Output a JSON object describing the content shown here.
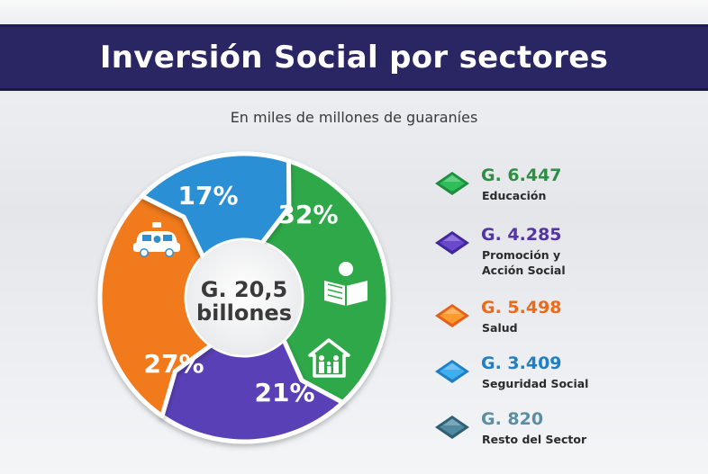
{
  "title": "Inversión Social por sectores",
  "subtitle": "En miles de millones de guaraníes",
  "center_line1": "G. 20,5",
  "center_line2": "billones",
  "chart_data": {
    "type": "pie",
    "title": "Inversión Social por sectores",
    "subtitle": "En miles de millones de guaraníes",
    "total_label": "G. 20,5 billones",
    "slices": [
      {
        "label": "Educación",
        "value_text": "G. 6.447",
        "value": 6447,
        "percent": 32,
        "percent_label": "32%",
        "color": "#2fa84a",
        "icon": "student-reading-icon"
      },
      {
        "label": "Promoción y Acción Social",
        "value_text": "G. 4.285",
        "value": 4285,
        "percent": 21,
        "percent_label": "21%",
        "color": "#5a3fb6",
        "icon": "family-house-icon"
      },
      {
        "label": "Salud",
        "value_text": "G. 5.498",
        "value": 5498,
        "percent": 27,
        "percent_label": "27%",
        "color": "#f07a1e",
        "icon": ""
      },
      {
        "label": "Seguridad Social",
        "value_text": "G. 3.409",
        "value": 3409,
        "percent": 17,
        "percent_label": "17%",
        "color": "#2b8fd4",
        "icon": "police-car-icon"
      },
      {
        "label": "Resto del Sector",
        "value_text": "G. 820",
        "value": 820,
        "percent": null,
        "percent_label": "",
        "color": "#3b6f86",
        "icon": ""
      }
    ]
  },
  "legend": [
    {
      "value": "G. 6.447",
      "label": "Educación",
      "color": "#2e8f43",
      "gem": "#2fbf5a",
      "gem_dark": "#1e8e3f"
    },
    {
      "value": "G. 4.285",
      "label": "Promoción y Acción Social",
      "color": "#5333a8",
      "gem": "#6b49cc",
      "gem_dark": "#41279a"
    },
    {
      "value": "G. 5.498",
      "label": "Salud",
      "color": "#ee6a16",
      "gem": "#ff9a2e",
      "gem_dark": "#e0621a"
    },
    {
      "value": "G. 3.409",
      "label": "Seguridad Social",
      "color": "#1e7fc2",
      "gem": "#41aef0",
      "gem_dark": "#1f7fc4"
    },
    {
      "value": "G. 820",
      "label": "Resto del Sector",
      "color": "#5a8ea3",
      "gem": "#4f8aa1",
      "gem_dark": "#2f5f73"
    }
  ]
}
